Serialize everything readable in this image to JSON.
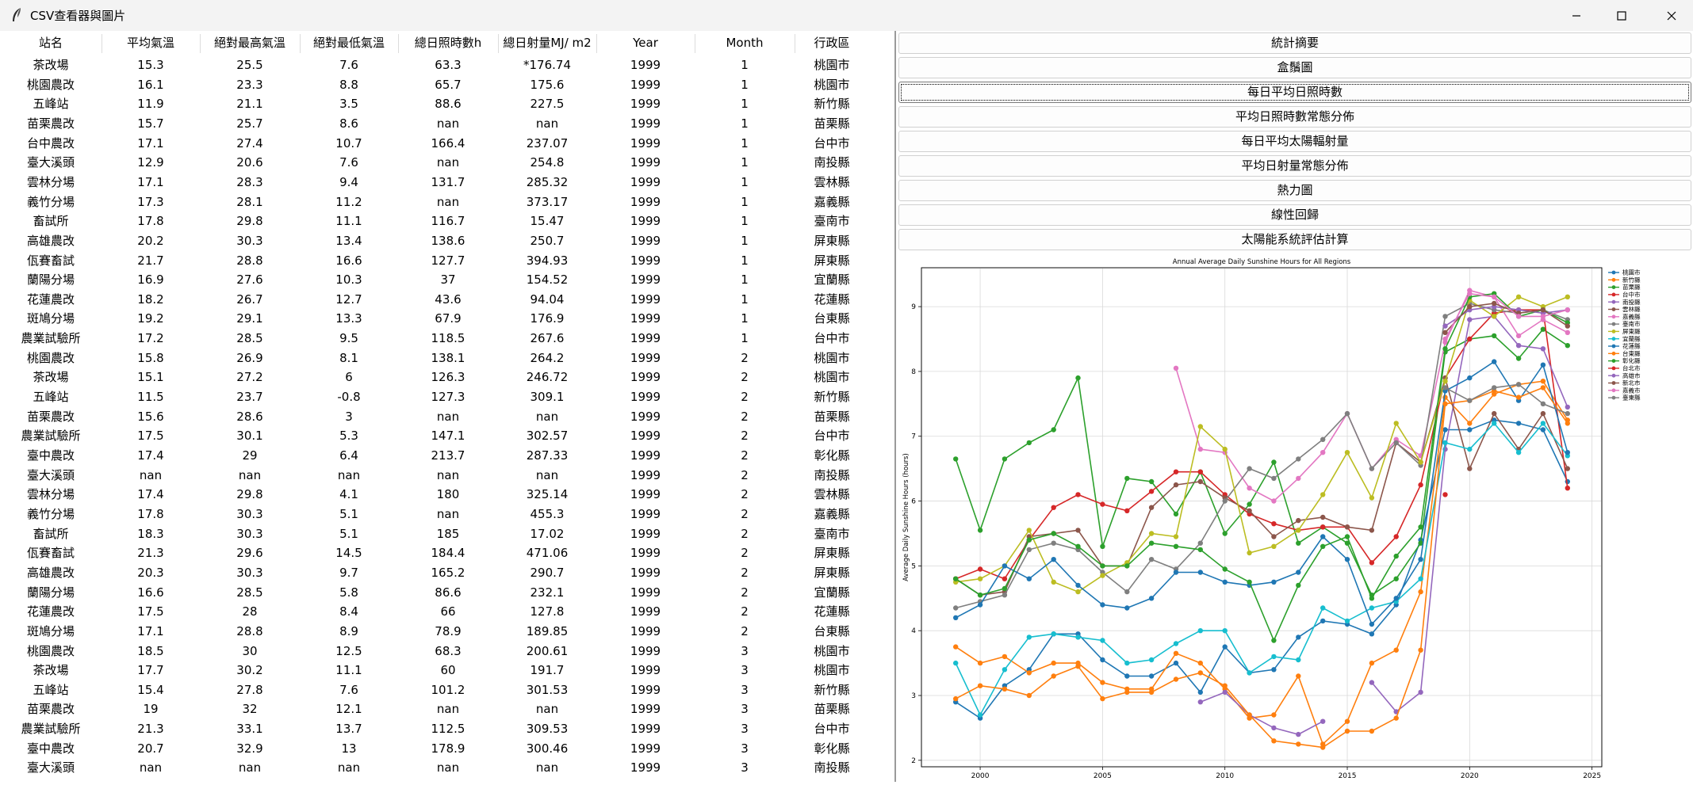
{
  "window": {
    "title": "CSV查看器與圖片"
  },
  "table": {
    "columns": [
      "站名",
      "平均氣溫",
      "絕對最高氣溫",
      "絕對最低氣溫",
      "總日照時數h",
      "總日射量MJ/ m2",
      "Year",
      "Month",
      "行政區"
    ],
    "rows": [
      [
        "茶改場",
        "15.3",
        "25.5",
        "7.6",
        "63.3",
        "*176.74",
        "1999",
        "1",
        "桃園市"
      ],
      [
        "桃園農改",
        "16.1",
        "23.3",
        "8.8",
        "65.7",
        "175.6",
        "1999",
        "1",
        "桃園市"
      ],
      [
        "五峰站",
        "11.9",
        "21.1",
        "3.5",
        "88.6",
        "227.5",
        "1999",
        "1",
        "新竹縣"
      ],
      [
        "苗栗農改",
        "15.7",
        "25.7",
        "8.6",
        "nan",
        "nan",
        "1999",
        "1",
        "苗栗縣"
      ],
      [
        "台中農改",
        "17.1",
        "27.4",
        "10.7",
        "166.4",
        "237.07",
        "1999",
        "1",
        "台中市"
      ],
      [
        "臺大溪頭",
        "12.9",
        "20.6",
        "7.6",
        "nan",
        "254.8",
        "1999",
        "1",
        "南投縣"
      ],
      [
        "雲林分場",
        "17.1",
        "28.3",
        "9.4",
        "131.7",
        "285.32",
        "1999",
        "1",
        "雲林縣"
      ],
      [
        "義竹分場",
        "17.3",
        "28.1",
        "11.2",
        "nan",
        "373.17",
        "1999",
        "1",
        "嘉義縣"
      ],
      [
        "畜試所",
        "17.8",
        "29.8",
        "11.1",
        "116.7",
        "15.47",
        "1999",
        "1",
        "臺南市"
      ],
      [
        "高雄農改",
        "20.2",
        "30.3",
        "13.4",
        "138.6",
        "250.7",
        "1999",
        "1",
        "屏東縣"
      ],
      [
        "佤賽畜試",
        "21.7",
        "28.8",
        "16.6",
        "127.7",
        "394.93",
        "1999",
        "1",
        "屏東縣"
      ],
      [
        "蘭陽分場",
        "16.9",
        "27.6",
        "10.3",
        "37",
        "154.52",
        "1999",
        "1",
        "宜蘭縣"
      ],
      [
        "花蓮農改",
        "18.2",
        "26.7",
        "12.7",
        "43.6",
        "94.04",
        "1999",
        "1",
        "花蓮縣"
      ],
      [
        "斑鳩分場",
        "19.2",
        "29.1",
        "13.3",
        "67.9",
        "176.9",
        "1999",
        "1",
        "台東縣"
      ],
      [
        "農業試驗所",
        "17.2",
        "28.5",
        "9.5",
        "118.5",
        "267.6",
        "1999",
        "1",
        "台中市"
      ],
      [
        "桃園農改",
        "15.8",
        "26.9",
        "8.1",
        "138.1",
        "264.2",
        "1999",
        "2",
        "桃園市"
      ],
      [
        "茶改場",
        "15.1",
        "27.2",
        "6",
        "126.3",
        "246.72",
        "1999",
        "2",
        "桃園市"
      ],
      [
        "五峰站",
        "11.5",
        "23.7",
        "-0.8",
        "127.3",
        "309.1",
        "1999",
        "2",
        "新竹縣"
      ],
      [
        "苗栗農改",
        "15.6",
        "28.6",
        "3",
        "nan",
        "nan",
        "1999",
        "2",
        "苗栗縣"
      ],
      [
        "農業試驗所",
        "17.5",
        "30.1",
        "5.3",
        "147.1",
        "302.57",
        "1999",
        "2",
        "台中市"
      ],
      [
        "臺中農改",
        "17.4",
        "29",
        "6.4",
        "213.7",
        "287.33",
        "1999",
        "2",
        "彰化縣"
      ],
      [
        "臺大溪頭",
        "nan",
        "nan",
        "nan",
        "nan",
        "nan",
        "1999",
        "2",
        "南投縣"
      ],
      [
        "雲林分場",
        "17.4",
        "29.8",
        "4.1",
        "180",
        "325.14",
        "1999",
        "2",
        "雲林縣"
      ],
      [
        "義竹分場",
        "17.8",
        "30.3",
        "5.1",
        "nan",
        "455.3",
        "1999",
        "2",
        "嘉義縣"
      ],
      [
        "畜試所",
        "18.3",
        "30.3",
        "5.1",
        "185",
        "17.02",
        "1999",
        "2",
        "臺南市"
      ],
      [
        "佤賽畜試",
        "21.3",
        "29.6",
        "14.5",
        "184.4",
        "471.06",
        "1999",
        "2",
        "屏東縣"
      ],
      [
        "高雄農改",
        "20.3",
        "30.3",
        "9.7",
        "165.2",
        "290.7",
        "1999",
        "2",
        "屏東縣"
      ],
      [
        "蘭陽分場",
        "16.6",
        "28.5",
        "5.8",
        "86.6",
        "232.1",
        "1999",
        "2",
        "宜蘭縣"
      ],
      [
        "花蓮農改",
        "17.5",
        "28",
        "8.4",
        "66",
        "127.8",
        "1999",
        "2",
        "花蓮縣"
      ],
      [
        "斑鳩分場",
        "17.1",
        "28.8",
        "8.9",
        "78.9",
        "189.85",
        "1999",
        "2",
        "台東縣"
      ],
      [
        "桃園農改",
        "18.5",
        "30",
        "12.5",
        "68.3",
        "200.61",
        "1999",
        "3",
        "桃園市"
      ],
      [
        "茶改場",
        "17.7",
        "30.2",
        "11.1",
        "60",
        "191.7",
        "1999",
        "3",
        "桃園市"
      ],
      [
        "五峰站",
        "15.4",
        "27.8",
        "7.6",
        "101.2",
        "301.53",
        "1999",
        "3",
        "新竹縣"
      ],
      [
        "苗栗農改",
        "19",
        "32",
        "12.1",
        "nan",
        "nan",
        "1999",
        "3",
        "苗栗縣"
      ],
      [
        "農業試驗所",
        "21.3",
        "33.1",
        "13.7",
        "112.5",
        "309.53",
        "1999",
        "3",
        "台中市"
      ],
      [
        "臺中農改",
        "20.7",
        "32.9",
        "13",
        "178.9",
        "300.46",
        "1999",
        "3",
        "彰化縣"
      ],
      [
        "臺大溪頭",
        "nan",
        "nan",
        "nan",
        "nan",
        "nan",
        "1999",
        "3",
        "南投縣"
      ]
    ]
  },
  "buttons": [
    "統計摘要",
    "盒鬚圖",
    "每日平均日照時數",
    "平均日照時數常態分佈",
    "每日平均太陽輻射量",
    "平均日射量常態分佈",
    "熱力圖",
    "線性回歸",
    "太陽能系統評估計算"
  ],
  "focused_button_index": 2,
  "chart_data": {
    "type": "line",
    "title": "Annual Average Daily Sunshine Hours for All Regions",
    "xlabel": "Year",
    "ylabel": "Average Daily Sunshine Hours (hours)",
    "xlim": [
      1997.6,
      2025.4
    ],
    "ylim": [
      1.9,
      9.6
    ],
    "xticks": [
      2000,
      2005,
      2010,
      2015,
      2020,
      2025
    ],
    "yticks": [
      2,
      3,
      4,
      5,
      6,
      7,
      8,
      9
    ],
    "grid": true,
    "legend_position": "right",
    "series": [
      {
        "name": "桃園市",
        "color": "#1f77b4",
        "x": [
          1999,
          2000,
          2001,
          2002,
          2003,
          2004,
          2005,
          2006,
          2007,
          2008,
          2009,
          2010,
          2011,
          2012,
          2013,
          2014,
          2015,
          2016,
          2017,
          2018,
          2019,
          2020,
          2021,
          2022,
          2023,
          2024
        ],
        "y": [
          2.9,
          2.65,
          3.15,
          3.4,
          3.95,
          3.95,
          3.55,
          3.3,
          3.3,
          3.5,
          3.05,
          3.75,
          3.35,
          3.4,
          3.9,
          4.15,
          4.1,
          3.95,
          4.4,
          5.4,
          7.1,
          7.1,
          7.25,
          7.2,
          7.1,
          6.3
        ]
      },
      {
        "name": "新竹縣",
        "color": "#ff7f0e",
        "x": [
          1999,
          2000,
          2001,
          2002,
          2003,
          2004,
          2005,
          2006,
          2007,
          2008,
          2009,
          2010,
          2011,
          2012,
          2013,
          2014,
          2015,
          2016,
          2017,
          2018,
          2019,
          2020,
          2021,
          2022,
          2023,
          2024
        ],
        "y": [
          3.75,
          3.5,
          3.6,
          3.35,
          3.5,
          3.5,
          3.2,
          3.1,
          3.1,
          3.65,
          3.5,
          3.1,
          2.65,
          2.7,
          3.3,
          2.25,
          2.6,
          3.5,
          3.7,
          4.6,
          7.6,
          7.2,
          7.65,
          7.8,
          7.85,
          7.25
        ]
      },
      {
        "name": "苗栗縣",
        "color": "#2ca02c",
        "x": [
          1999,
          2000,
          2001,
          2002,
          2003,
          2004,
          2005,
          2006,
          2007,
          2008,
          2009,
          2010,
          2011,
          2012,
          2013,
          2014,
          2015,
          2016,
          2017,
          2018,
          2019,
          2020,
          2021,
          2022,
          2023,
          2024
        ],
        "y": [
          6.65,
          5.55,
          6.65,
          6.9,
          7.1,
          7.9,
          5.3,
          6.35,
          6.3,
          5.8,
          6.45,
          5.5,
          5.95,
          6.6,
          5.35,
          5.6,
          5.35,
          4.55,
          4.8,
          5.35,
          8.3,
          8.5,
          8.55,
          8.2,
          8.65,
          8.4
        ]
      },
      {
        "name": "台中市",
        "color": "#d62728",
        "x": [
          1999,
          2000,
          2001,
          2002,
          2003,
          2004,
          2005,
          2006,
          2007,
          2008,
          2009,
          2010,
          2011,
          2012,
          2013,
          2014,
          2015,
          2016,
          2017,
          2018,
          2019,
          2020,
          2021,
          2022,
          2023,
          2024
        ],
        "y": [
          4.8,
          4.95,
          4.8,
          5.4,
          5.9,
          6.1,
          5.95,
          5.85,
          6.15,
          6.45,
          6.45,
          6.1,
          5.8,
          5.65,
          5.55,
          5.6,
          5.6,
          5.05,
          5.45,
          6.25,
          7.9,
          8.5,
          8.9,
          8.95,
          8.95,
          6.2
        ]
      },
      {
        "name": "南投縣",
        "color": "#9467bd",
        "x": [
          2009,
          2010,
          2011,
          2012,
          2013,
          2014,
          2015,
          2016,
          2017,
          2018,
          2019,
          2020,
          2021,
          2022,
          2023,
          2024
        ],
        "y": [
          2.9,
          3.05,
          2.7,
          2.5,
          2.4,
          2.6,
          null,
          3.2,
          2.75,
          3.05,
          6.8,
          8.8,
          8.85,
          8.4,
          8.35,
          7.45
        ]
      },
      {
        "name": "雲林縣",
        "color": "#8c564b",
        "x": [
          1999,
          2000,
          2001,
          2002,
          2003,
          2004,
          2005,
          2006,
          2007,
          2008,
          2009,
          2010,
          2011,
          2012,
          2013,
          2014,
          2015,
          2016,
          2017,
          2018,
          2019,
          2020,
          2021,
          2022,
          2023,
          2024
        ],
        "y": [
          4.8,
          4.55,
          4.6,
          5.45,
          5.5,
          5.55,
          5.0,
          5.0,
          5.9,
          6.25,
          6.3,
          6.05,
          5.85,
          5.45,
          5.7,
          5.75,
          5.6,
          5.55,
          6.9,
          6.6,
          7.9,
          6.5,
          7.35,
          6.8,
          7.35,
          6.5
        ]
      },
      {
        "name": "嘉義縣",
        "color": "#e377c2",
        "x": [
          2008,
          2009,
          2010,
          2011,
          2012,
          2013,
          2014,
          2015,
          2016,
          2017,
          2018,
          2019,
          2020,
          2021,
          2022,
          2023,
          2024
        ],
        "y": [
          8.05,
          6.8,
          6.75,
          6.2,
          6.0,
          6.35,
          6.75,
          7.35,
          6.5,
          6.95,
          6.7,
          8.45,
          9.25,
          9.15,
          8.55,
          8.8,
          8.6
        ]
      },
      {
        "name": "臺南市",
        "color": "#7f7f7f",
        "x": [
          1999,
          2000,
          2001,
          2002,
          2003,
          2004,
          2005,
          2006,
          2007,
          2008,
          2009,
          2010,
          2011,
          2012,
          2013,
          2014,
          2015,
          2016,
          2017,
          2018,
          2019,
          2020,
          2021,
          2022,
          2023,
          2024
        ],
        "y": [
          4.35,
          4.45,
          4.55,
          5.25,
          5.35,
          5.25,
          4.9,
          4.6,
          5.1,
          4.95,
          5.35,
          6.0,
          6.5,
          6.35,
          6.65,
          6.95,
          7.35,
          6.5,
          6.9,
          6.55,
          8.85,
          9.05,
          8.95,
          8.9,
          8.95,
          8.8
        ]
      },
      {
        "name": "屏東縣",
        "color": "#bcbd22",
        "x": [
          1999,
          2000,
          2001,
          2002,
          2003,
          2004,
          2005,
          2006,
          2007,
          2008,
          2009,
          2010,
          2011,
          2012,
          2013,
          2014,
          2015,
          2016,
          2017,
          2018,
          2019,
          2020,
          2021,
          2022,
          2023,
          2024
        ],
        "y": [
          4.75,
          4.8,
          5.0,
          5.55,
          4.75,
          4.6,
          4.85,
          5.05,
          5.5,
          5.45,
          7.15,
          6.8,
          5.2,
          5.3,
          5.55,
          6.1,
          6.75,
          6.05,
          7.2,
          6.6,
          7.85,
          9.1,
          8.85,
          9.15,
          9.0,
          9.15
        ]
      },
      {
        "name": "宜蘭縣",
        "color": "#17becf",
        "x": [
          1999,
          2000,
          2001,
          2002,
          2003,
          2004,
          2005,
          2006,
          2007,
          2008,
          2009,
          2010,
          2011,
          2012,
          2013,
          2014,
          2015,
          2016,
          2017,
          2018,
          2019,
          2020,
          2021,
          2022,
          2023,
          2024
        ],
        "y": [
          3.5,
          2.7,
          3.4,
          3.9,
          3.95,
          3.9,
          3.85,
          3.5,
          3.55,
          3.8,
          4.0,
          4.0,
          3.35,
          3.6,
          3.55,
          4.35,
          4.15,
          4.35,
          4.45,
          4.8,
          6.9,
          6.8,
          7.2,
          6.75,
          7.2,
          6.7
        ]
      },
      {
        "name": "花蓮縣",
        "color": "#1f77b4",
        "x": [
          1999,
          2000,
          2001,
          2002,
          2003,
          2004,
          2005,
          2006,
          2007,
          2008,
          2009,
          2010,
          2011,
          2012,
          2013,
          2014,
          2015,
          2016,
          2017,
          2018,
          2019,
          2020,
          2021,
          2022,
          2023,
          2024
        ],
        "y": [
          4.2,
          4.4,
          5.0,
          4.8,
          5.1,
          4.7,
          4.4,
          4.35,
          4.5,
          4.9,
          4.9,
          4.75,
          4.7,
          4.75,
          4.9,
          5.45,
          5.1,
          4.1,
          4.5,
          5.1,
          7.7,
          7.9,
          8.15,
          7.55,
          8.1,
          6.75
        ]
      },
      {
        "name": "台東縣",
        "color": "#ff7f0e",
        "x": [
          1999,
          2000,
          2001,
          2002,
          2003,
          2004,
          2005,
          2006,
          2007,
          2008,
          2009,
          2010,
          2011,
          2012,
          2013,
          2014,
          2015,
          2016,
          2017,
          2018,
          2019,
          2020,
          2021,
          2022,
          2023,
          2024
        ],
        "y": [
          2.95,
          3.15,
          3.1,
          3.0,
          3.3,
          3.45,
          2.95,
          3.05,
          3.05,
          3.25,
          3.35,
          3.15,
          2.7,
          2.3,
          2.25,
          2.2,
          2.45,
          2.45,
          2.65,
          3.7,
          7.5,
          7.55,
          7.7,
          7.6,
          7.75,
          7.2
        ]
      },
      {
        "name": "彰化縣",
        "color": "#2ca02c",
        "x": [
          1999,
          2000,
          2001,
          2002,
          2003,
          2004,
          2005,
          2006,
          2007,
          2008,
          2009,
          2010,
          2011,
          2012,
          2013,
          2014,
          2015,
          2016,
          2017,
          2018,
          2019,
          2020,
          2021,
          2022,
          2023,
          2024
        ],
        "y": [
          4.8,
          4.55,
          4.65,
          5.4,
          5.5,
          5.3,
          5.0,
          5.0,
          5.35,
          5.3,
          5.25,
          4.95,
          4.75,
          3.85,
          4.7,
          5.3,
          5.45,
          4.5,
          5.15,
          5.6,
          8.35,
          9.15,
          9.2,
          8.85,
          8.95,
          8.75
        ]
      },
      {
        "name": "台北市",
        "color": "#d62728",
        "x": [
          2019
        ],
        "y": [
          6.1
        ]
      },
      {
        "name": "高雄市",
        "color": "#9467bd",
        "x": [
          2019,
          2020,
          2021,
          2022,
          2023,
          2024
        ],
        "y": [
          8.7,
          8.95,
          9.0,
          8.95,
          8.9,
          8.95
        ]
      },
      {
        "name": "新北市",
        "color": "#8c564b",
        "x": [
          2019,
          2020,
          2021,
          2022,
          2023,
          2024
        ],
        "y": [
          8.6,
          9.0,
          9.05,
          8.9,
          8.95,
          8.7
        ]
      },
      {
        "name": "嘉義市",
        "color": "#e377c2",
        "x": [
          2019,
          2020,
          2021,
          2022,
          2023,
          2024
        ],
        "y": [
          8.5,
          9.2,
          9.15,
          8.85,
          8.85,
          8.95
        ]
      },
      {
        "name": "臺東縣",
        "color": "#7f7f7f",
        "x": [
          2019,
          2020,
          2021,
          2022,
          2023,
          2024
        ],
        "y": [
          7.75,
          7.55,
          7.75,
          7.8,
          7.5,
          7.35
        ]
      }
    ]
  }
}
